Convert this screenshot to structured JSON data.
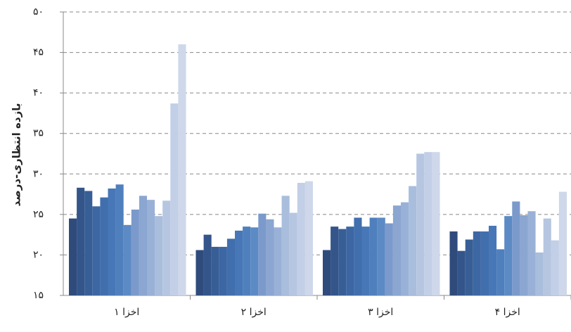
{
  "chart_data": {
    "type": "bar",
    "ylabel": "بازده انتظاری-درصد",
    "categories": [
      "اخزا ۱",
      "اخزا ۲",
      "اخزا ۳",
      "اخزا ۴"
    ],
    "ylim": [
      15,
      50
    ],
    "yticks": [
      {
        "value": 15,
        "label": "۱۵"
      },
      {
        "value": 20,
        "label": "۲۰"
      },
      {
        "value": 25,
        "label": "۲۵"
      },
      {
        "value": 30,
        "label": "۳۰"
      },
      {
        "value": 35,
        "label": "۳۵"
      },
      {
        "value": 40,
        "label": "۴۰"
      },
      {
        "value": 45,
        "label": "۴۵"
      },
      {
        "value": 50,
        "label": "۵۰"
      }
    ],
    "grid": true,
    "series": [
      {
        "color": "#2f4b7c",
        "values": [
          24.5,
          20.6,
          20.6,
          22.9
        ]
      },
      {
        "color": "#34558a",
        "values": [
          28.3,
          22.5,
          23.5,
          20.5
        ]
      },
      {
        "color": "#385e96",
        "values": [
          27.9,
          21.0,
          23.2,
          21.9
        ]
      },
      {
        "color": "#3c67a3",
        "values": [
          26.0,
          21.0,
          23.5,
          22.9
        ]
      },
      {
        "color": "#416fae",
        "values": [
          27.1,
          22.0,
          24.6,
          22.9
        ]
      },
      {
        "color": "#4777b6",
        "values": [
          28.2,
          23.0,
          23.5,
          23.6
        ]
      },
      {
        "color": "#4f80bd",
        "values": [
          28.7,
          23.5,
          24.6,
          20.7
        ]
      },
      {
        "color": "#5c8ac4",
        "values": [
          23.7,
          23.4,
          24.6,
          24.8
        ]
      },
      {
        "color": "#7b9acb",
        "values": [
          25.6,
          25.1,
          23.9,
          26.6
        ]
      },
      {
        "color": "#8aa6d1",
        "values": [
          27.3,
          24.4,
          26.1,
          24.9
        ]
      },
      {
        "color": "#9ab1d7",
        "values": [
          26.8,
          23.4,
          26.5,
          25.4
        ]
      },
      {
        "color": "#a9bddc",
        "values": [
          24.8,
          27.3,
          28.5,
          20.3
        ]
      },
      {
        "color": "#b6c6e1",
        "values": [
          26.7,
          25.2,
          32.5,
          24.5
        ]
      },
      {
        "color": "#c2cfe6",
        "values": [
          38.7,
          28.9,
          32.7,
          21.8
        ]
      },
      {
        "color": "#ced8ea",
        "values": [
          46.0,
          29.1,
          32.7,
          27.8
        ]
      }
    ]
  }
}
